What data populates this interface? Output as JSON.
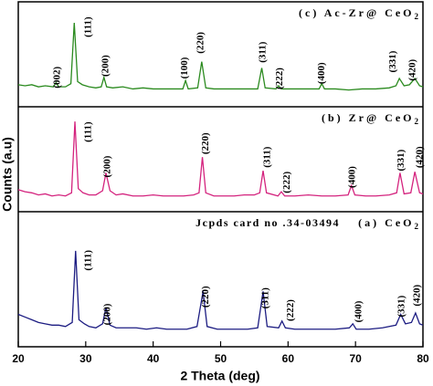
{
  "chart_data": {
    "type": "line",
    "xlabel": "2 Theta (deg)",
    "ylabel": "Counts (a.u)",
    "xlim": [
      20,
      80
    ],
    "xticks": [
      20,
      30,
      40,
      50,
      60,
      70,
      80
    ],
    "panels": [
      {
        "title": "(c) Ac-Zr@ CeO",
        "title_sub": "2",
        "color": "#2a8a1e",
        "ylim": [
          0,
          100
        ],
        "x": [
          20,
          21,
          22,
          23,
          24,
          25.2,
          25.6,
          26,
          27,
          27.8,
          28.3,
          28.8,
          29.5,
          30.5,
          31.5,
          32.3,
          32.7,
          33.1,
          34,
          35.5,
          37,
          38.5,
          40,
          41.5,
          43,
          44.4,
          44.8,
          45.2,
          46.6,
          47.2,
          47.8,
          49,
          50.5,
          52,
          53.5,
          55.5,
          56.1,
          56.6,
          58.2,
          58.6,
          59,
          60.5,
          62,
          63.5,
          64.6,
          65,
          65.4,
          67,
          69,
          71,
          73,
          75,
          76,
          76.5,
          77.2,
          78,
          78.8,
          79.5,
          80
        ],
        "values": [
          21,
          20,
          21,
          19,
          20,
          19,
          23,
          19,
          19,
          22,
          80,
          24,
          21,
          19,
          18,
          19,
          28,
          19,
          18,
          19,
          17,
          18,
          17,
          17,
          17,
          17,
          25,
          17,
          18,
          43,
          18,
          17,
          17,
          17,
          17,
          17,
          37,
          18,
          17,
          20,
          17,
          17,
          17,
          17,
          17,
          22,
          17,
          17,
          16,
          17,
          17,
          18,
          20,
          27,
          20,
          21,
          27,
          20,
          19
        ],
        "annotations": [
          {
            "text": "(002)",
            "x": 25.8,
            "y": 28
          },
          {
            "text": "(111)",
            "x": 30.4,
            "y": 76
          },
          {
            "text": "(200)",
            "x": 33,
            "y": 39
          },
          {
            "text": "(100)",
            "x": 44.7,
            "y": 37
          },
          {
            "text": "(220)",
            "x": 47.1,
            "y": 61
          },
          {
            "text": "(311)",
            "x": 56.3,
            "y": 52
          },
          {
            "text": "(222)",
            "x": 58.8,
            "y": 27
          },
          {
            "text": "(400)",
            "x": 65,
            "y": 32
          },
          {
            "text": "(331)",
            "x": 75.6,
            "y": 43
          },
          {
            "text": "(420)",
            "x": 78.5,
            "y": 35
          }
        ]
      },
      {
        "title": "(b) Zr@ CeO",
        "title_sub": "2",
        "color": "#d4237e",
        "ylim": [
          0,
          100
        ],
        "x": [
          20,
          21,
          22,
          23,
          24,
          25,
          26,
          27,
          27.9,
          28.4,
          28.9,
          29.6,
          30.5,
          31.5,
          32.5,
          33,
          33.6,
          34.5,
          35.5,
          37,
          38.5,
          40,
          41.5,
          43,
          44.5,
          46,
          46.8,
          47.3,
          47.8,
          49,
          50.5,
          52,
          53.5,
          55,
          55.8,
          56.3,
          56.8,
          58.5,
          59,
          59.5,
          61,
          63,
          65,
          67,
          68.9,
          69.4,
          69.9,
          71.5,
          73,
          75,
          76.1,
          76.6,
          77.2,
          78.2,
          78.8,
          79.5,
          80
        ],
        "values": [
          21,
          19,
          18,
          16,
          17,
          15,
          16,
          15,
          18,
          86,
          22,
          18,
          16,
          16,
          20,
          37,
          20,
          16,
          17,
          15,
          15,
          16,
          15,
          15,
          15,
          16,
          18,
          52,
          18,
          15,
          15,
          15,
          16,
          16,
          18,
          39,
          18,
          15,
          19,
          15,
          15,
          16,
          15,
          15,
          16,
          25,
          16,
          15,
          15,
          16,
          18,
          37,
          17,
          18,
          38,
          18,
          17
        ],
        "annotations": [
          {
            "text": "(111)",
            "x": 30.4,
            "y": 76
          },
          {
            "text": "(200)",
            "x": 33.3,
            "y": 43
          },
          {
            "text": "(220)",
            "x": 47.8,
            "y": 65
          },
          {
            "text": "(311)",
            "x": 57,
            "y": 52
          },
          {
            "text": "(222)",
            "x": 59.9,
            "y": 28
          },
          {
            "text": "(400)",
            "x": 69.6,
            "y": 33
          },
          {
            "text": "(331)",
            "x": 76.8,
            "y": 49
          },
          {
            "text": "(420)",
            "x": 79.6,
            "y": 52
          }
        ]
      },
      {
        "title": "(a) CeO",
        "title_sub": "2",
        "note": "Jcpds card no .34-03494",
        "color": "#1c1c82",
        "ylim": [
          0,
          100
        ],
        "x": [
          20,
          21,
          22,
          23,
          24,
          25,
          26,
          27,
          28,
          28.5,
          29,
          29.8,
          30.5,
          31.5,
          32.5,
          33,
          33.6,
          34.5,
          36,
          37.5,
          39,
          40.5,
          42,
          43.5,
          45,
          46.5,
          47.4,
          48,
          49.5,
          51,
          52.5,
          54,
          55.5,
          56.3,
          56.9,
          58.6,
          59.1,
          59.6,
          61,
          63,
          65,
          67,
          69.1,
          69.6,
          70.1,
          72,
          74,
          76,
          76.7,
          77.4,
          78.3,
          78.9,
          79.5,
          80
        ],
        "values": [
          24,
          22,
          20,
          18,
          17,
          16,
          16,
          15,
          18,
          71,
          20,
          17,
          15,
          14,
          17,
          29,
          16,
          14,
          14,
          14,
          13,
          14,
          13,
          13,
          13,
          15,
          41,
          15,
          13,
          13,
          13,
          13,
          14,
          41,
          15,
          14,
          19,
          14,
          13,
          13,
          13,
          13,
          14,
          17,
          13,
          13,
          14,
          16,
          24,
          17,
          18,
          25,
          17,
          16
        ],
        "annotations": [
          {
            "text": "(111)",
            "x": 30.4,
            "y": 64
          },
          {
            "text": "(200)",
            "x": 33.3,
            "y": 24
          },
          {
            "text": "(220)",
            "x": 47.8,
            "y": 37
          },
          {
            "text": "(311)",
            "x": 56.7,
            "y": 36
          },
          {
            "text": "(222)",
            "x": 60.4,
            "y": 27
          },
          {
            "text": "(400)",
            "x": 70.5,
            "y": 26
          },
          {
            "text": "(331)",
            "x": 76.9,
            "y": 30
          },
          {
            "text": "(420)",
            "x": 79.2,
            "y": 38
          }
        ]
      }
    ]
  }
}
